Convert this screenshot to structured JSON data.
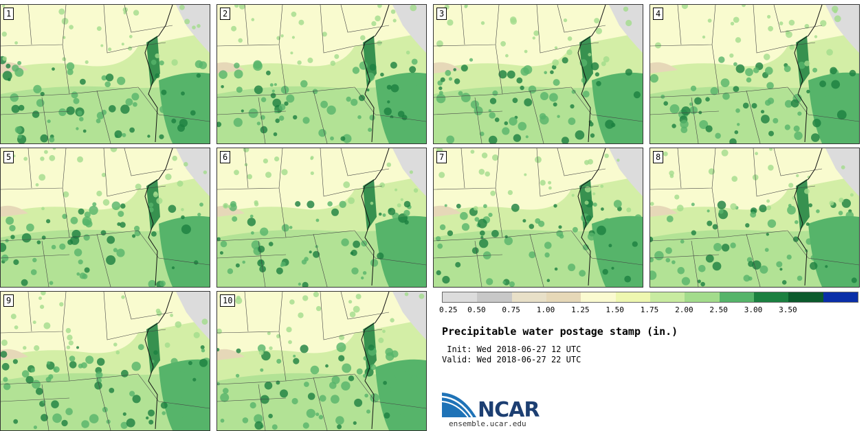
{
  "stamps": [
    {
      "label": "1",
      "seed": 11
    },
    {
      "label": "2",
      "seed": 23
    },
    {
      "label": "3",
      "seed": 37
    },
    {
      "label": "4",
      "seed": 41
    },
    {
      "label": "5",
      "seed": 53
    },
    {
      "label": "6",
      "seed": 67
    },
    {
      "label": "7",
      "seed": 71
    },
    {
      "label": "8",
      "seed": 83
    },
    {
      "label": "9",
      "seed": 97
    },
    {
      "label": "10",
      "seed": 101
    }
  ],
  "legend": {
    "colors": [
      "#dcdcdc",
      "#c8c8c8",
      "#e8e0c8",
      "#e6d8b8",
      "#fafad0",
      "#eef7b0",
      "#c8eba0",
      "#a3dc8c",
      "#56b46a",
      "#1b8040",
      "#0b5a2c",
      "#0a2fa8"
    ],
    "tick_labels": [
      "0.25",
      "0.50",
      "0.75",
      "1.00",
      "1.25",
      "1.50",
      "1.75",
      "2.00",
      "2.50",
      "3.00",
      "3.50"
    ]
  },
  "title": "Precipitable water postage stamp (in.)",
  "init_line": " Init: Wed 2018-06-27 12 UTC",
  "valid_line": "Valid: Wed 2018-06-27 22 UTC",
  "logo": {
    "name": "NCAR",
    "url": "ensemble.ucar.edu"
  }
}
